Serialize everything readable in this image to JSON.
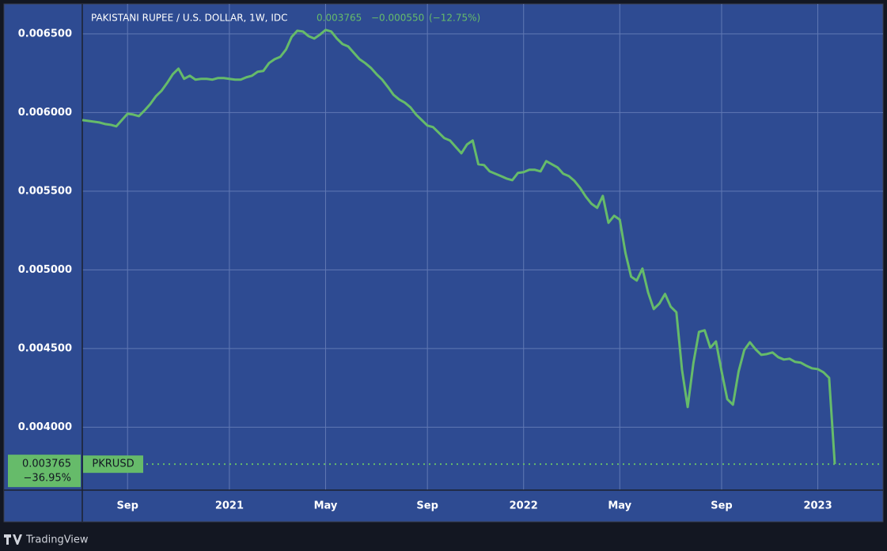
{
  "chart_data": {
    "type": "line",
    "title": "PAKISTANI RUPEE / U.S. DOLLAR, 1W, IDC",
    "last_change": "−0.000550",
    "last_change_pct": "(−12.75%)",
    "total_change_pct": "−36.95%",
    "categories": [
      null,
      null,
      null,
      null,
      null,
      null,
      null,
      null,
      "Sep",
      null,
      null,
      null,
      null,
      null,
      null,
      null,
      null,
      null,
      null,
      null,
      null,
      null,
      null,
      null,
      null,
      null,
      "2021",
      null,
      null,
      null,
      null,
      null,
      null,
      null,
      null,
      null,
      null,
      null,
      null,
      null,
      null,
      null,
      null,
      "May",
      null,
      null,
      null,
      null,
      null,
      null,
      null,
      null,
      null,
      null,
      null,
      null,
      null,
      null,
      null,
      null,
      null,
      "Sep",
      null,
      null,
      null,
      null,
      null,
      null,
      null,
      null,
      null,
      null,
      null,
      null,
      null,
      null,
      null,
      null,
      "2022",
      null,
      null,
      null,
      null,
      null,
      null,
      null,
      null,
      null,
      null,
      null,
      null,
      null,
      null,
      null,
      null,
      "May",
      null,
      null,
      null,
      null,
      null,
      null,
      null,
      null,
      null,
      null,
      null,
      null,
      null,
      null,
      null,
      null,
      null,
      "Sep",
      null,
      null,
      null,
      null,
      null,
      null,
      null,
      null,
      null,
      null,
      null,
      null,
      null,
      null,
      null,
      null,
      "2023",
      null,
      null,
      null
    ],
    "series": [
      {
        "name": "PKRUSD",
        "color": "#66bb6a",
        "values": [
          0.005952,
          0.005947,
          0.005942,
          0.005937,
          0.005927,
          0.005922,
          0.005912,
          0.005952,
          0.005992,
          0.005987,
          0.005977,
          0.006013,
          0.006053,
          0.006103,
          0.006138,
          0.006188,
          0.006244,
          0.006279,
          0.006214,
          0.006234,
          0.006209,
          0.006214,
          0.006214,
          0.006209,
          0.006219,
          0.006219,
          0.006214,
          0.006209,
          0.006209,
          0.006224,
          0.006234,
          0.006259,
          0.006264,
          0.006314,
          0.006339,
          0.006354,
          0.0064,
          0.00648,
          0.00652,
          0.006515,
          0.006485,
          0.00647,
          0.006495,
          0.006525,
          0.006515,
          0.00647,
          0.006435,
          0.00642,
          0.006379,
          0.006339,
          0.006314,
          0.006284,
          0.006244,
          0.006209,
          0.006163,
          0.006113,
          0.006083,
          0.006063,
          0.006033,
          0.005987,
          0.005952,
          0.005917,
          0.005907,
          0.005872,
          0.005837,
          0.005822,
          0.005781,
          0.005741,
          0.005797,
          0.005822,
          0.005671,
          0.005666,
          0.005626,
          0.005611,
          0.005596,
          0.00558,
          0.00557,
          0.005616,
          0.005621,
          0.005636,
          0.005636,
          0.005626,
          0.005691,
          0.005671,
          0.005651,
          0.005611,
          0.005596,
          0.005565,
          0.00552,
          0.005465,
          0.00542,
          0.005394,
          0.00547,
          0.005299,
          0.005344,
          0.005319,
          0.005108,
          0.004957,
          0.004932,
          0.005008,
          0.004857,
          0.004751,
          0.004786,
          0.004847,
          0.004766,
          0.004731,
          0.004364,
          0.004128,
          0.004405,
          0.004606,
          0.004616,
          0.004505,
          0.004545,
          0.004354,
          0.004178,
          0.004143,
          0.004354,
          0.00449,
          0.00454,
          0.004495,
          0.00446,
          0.004465,
          0.004475,
          0.004445,
          0.00443,
          0.004435,
          0.004415,
          0.00441,
          0.00439,
          0.004374,
          0.004369,
          0.004349,
          0.004314,
          0.003765
        ]
      }
    ],
    "ylim": [
      0.0036,
      0.00669
    ],
    "yticks": [
      {
        "value": 0.004,
        "label": "0.004000"
      },
      {
        "value": 0.0045,
        "label": "0.004500"
      },
      {
        "value": 0.005,
        "label": "0.005000"
      },
      {
        "value": 0.0055,
        "label": "0.005500"
      },
      {
        "value": 0.006,
        "label": "0.006000"
      },
      {
        "value": 0.0065,
        "label": "0.006500"
      }
    ],
    "grid": true
  },
  "footer": {
    "brand": "TradingView"
  }
}
